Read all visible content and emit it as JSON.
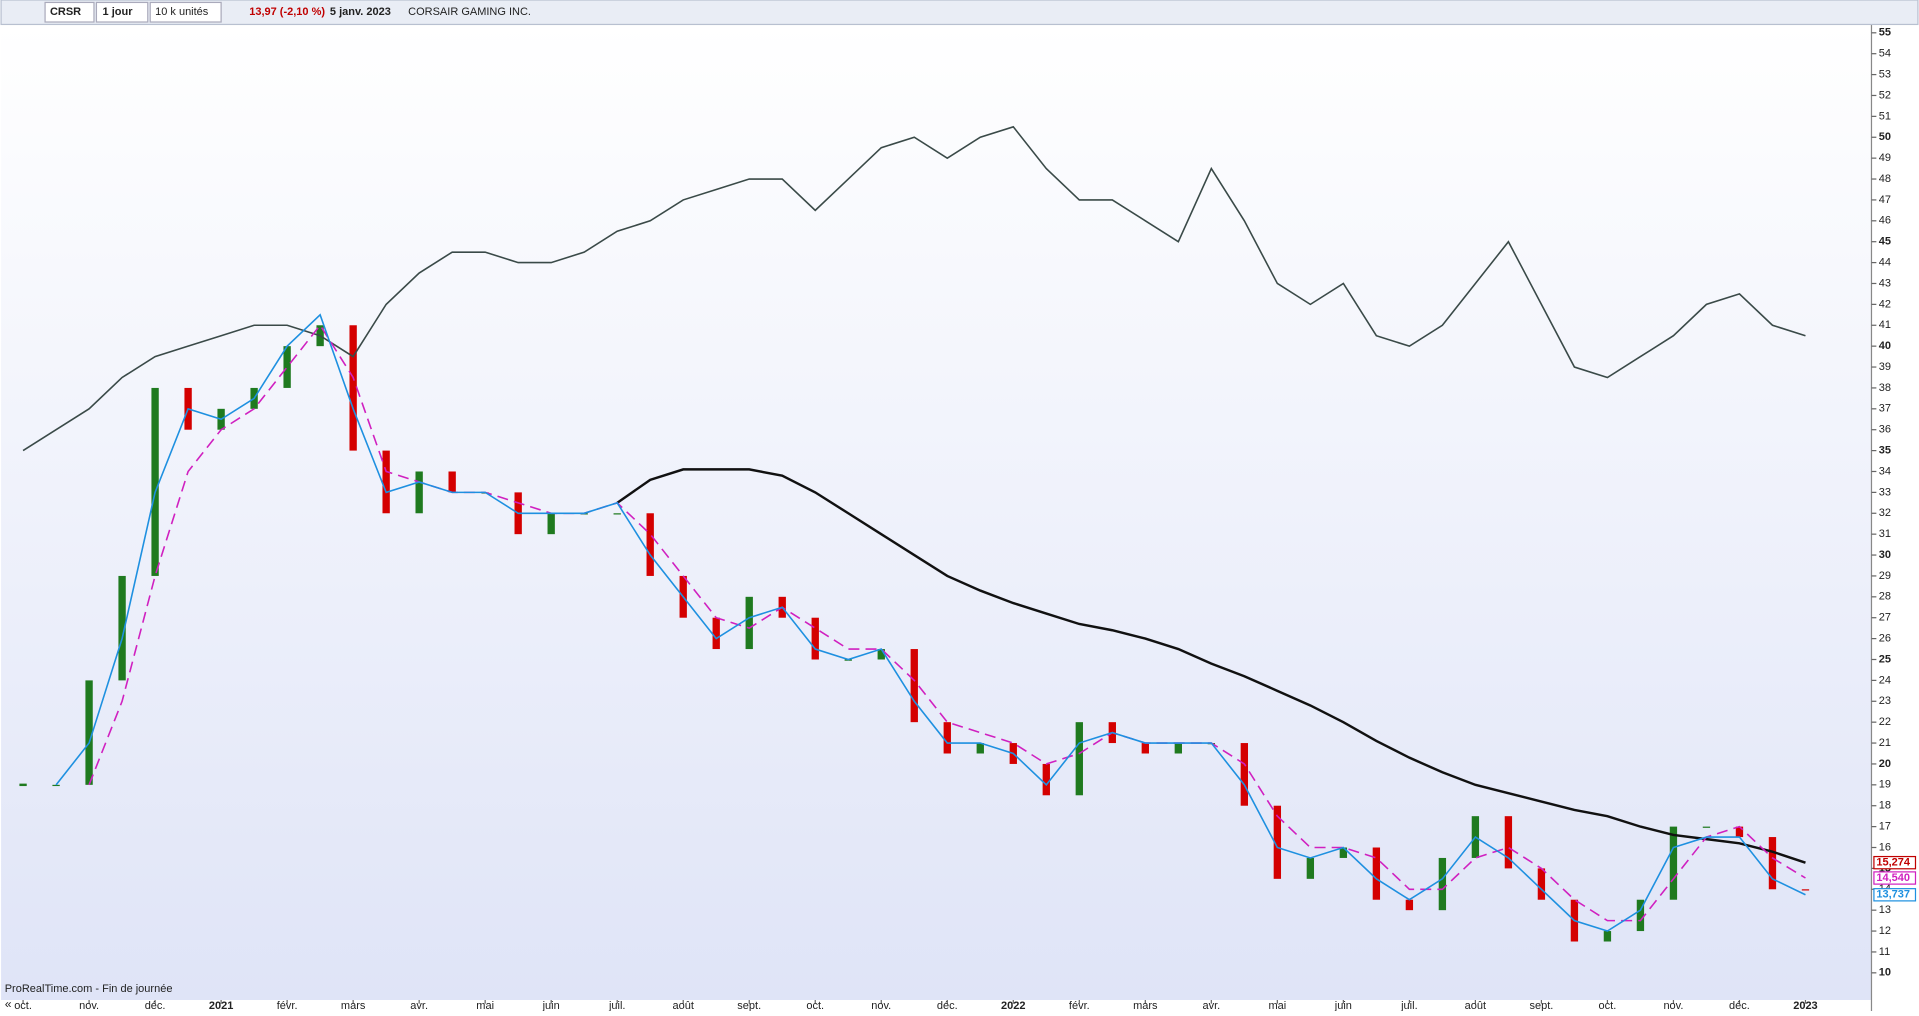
{
  "toolbar": {
    "symbol": "CRSR",
    "period": "1 jour",
    "units": "10 k unités",
    "quote": "13,97 (-2,10 %)",
    "date": "5 janv. 2023",
    "name": "CORSAIR GAMING INC."
  },
  "footer": "ProRealTime.com - Fin de journée",
  "chart_data": {
    "type": "line",
    "categories": [
      "oct.",
      null,
      "nov.",
      null,
      "déc.",
      null,
      "2021",
      null,
      "févr.",
      null,
      "mars",
      null,
      "avr.",
      null,
      "mai",
      null,
      "juin",
      null,
      "juil.",
      null,
      "août",
      null,
      "sept.",
      null,
      "oct.",
      null,
      "nov.",
      null,
      "déc.",
      null,
      "2022",
      null,
      "févr.",
      null,
      "mars",
      null,
      "avr.",
      null,
      "mai",
      null,
      "juin",
      null,
      "juil.",
      null,
      "août",
      null,
      "sept.",
      null,
      "oct.",
      null,
      "nov.",
      null,
      "déc.",
      null,
      "2023"
    ],
    "ylim": [
      8.7,
      55.4
    ],
    "yticks": [
      10,
      11,
      12,
      13,
      14,
      15,
      16,
      17,
      18,
      19,
      20,
      21,
      22,
      23,
      24,
      25,
      26,
      27,
      28,
      29,
      30,
      31,
      32,
      33,
      34,
      35,
      36,
      37,
      38,
      39,
      40,
      41,
      42,
      43,
      44,
      45,
      46,
      47,
      48,
      49,
      50,
      51,
      52,
      53,
      54,
      55
    ],
    "up_color": "#1f7a1f",
    "down_color": "#d40000",
    "series": [
      {
        "name": "CRSR",
        "role": "price",
        "values": [
          19,
          19,
          24,
          29,
          38,
          36,
          37,
          38,
          40,
          41,
          35,
          32,
          34,
          33,
          33,
          31,
          32,
          32,
          32,
          29,
          27,
          25.5,
          28,
          27,
          25,
          25,
          25.5,
          22,
          20.5,
          21,
          20,
          18.5,
          22,
          21,
          20.5,
          21,
          21,
          18,
          14.5,
          15.5,
          16,
          13.5,
          13,
          15.5,
          17.5,
          15,
          13.5,
          11.5,
          12,
          13.5,
          17,
          17,
          16.5,
          14,
          13.97
        ]
      },
      {
        "color": "#3a4a48",
        "values": [
          35,
          36,
          37,
          38.5,
          39.5,
          40,
          40.5,
          41,
          41,
          40.5,
          39.5,
          42,
          43.5,
          44.5,
          44.5,
          44,
          44,
          44.5,
          45.5,
          46,
          47,
          47.5,
          48,
          48,
          46.5,
          48,
          49.5,
          50,
          49,
          50,
          50.5,
          48.5,
          47,
          47,
          46,
          45,
          48.5,
          46,
          43,
          42,
          43,
          40.5,
          40,
          41,
          43,
          45,
          42,
          39,
          38.5,
          39.5,
          40.5,
          42,
          42.5,
          41,
          40.5
        ]
      },
      {
        "color": "#111111",
        "width": 2,
        "end_label": "15,274",
        "label_color": "#c00000",
        "values": [
          null,
          null,
          null,
          null,
          null,
          null,
          null,
          null,
          null,
          null,
          null,
          null,
          null,
          null,
          null,
          null,
          null,
          null,
          32.5,
          33.6,
          34.1,
          34.1,
          34.1,
          33.8,
          33,
          32,
          31,
          30,
          29,
          28.3,
          27.7,
          27.2,
          26.7,
          26.4,
          26,
          25.5,
          24.8,
          24.2,
          23.5,
          22.8,
          22,
          21.1,
          20.3,
          19.6,
          19,
          18.6,
          18.2,
          17.8,
          17.5,
          17,
          16.6,
          16.4,
          16.2,
          15.8,
          15.274
        ]
      },
      {
        "color": "#d020c0",
        "dash": "9 5",
        "end_label": "14,540",
        "values": [
          null,
          null,
          19,
          23,
          29,
          34,
          36,
          37,
          39,
          41,
          38.5,
          34,
          33.5,
          33,
          33,
          32.5,
          32,
          32,
          32.5,
          31,
          29,
          27,
          26.5,
          27.5,
          26.5,
          25.5,
          25.5,
          24,
          22,
          21.5,
          21,
          20,
          20.5,
          21.5,
          21,
          21,
          21,
          20,
          17.5,
          16,
          16,
          15.5,
          14,
          14,
          15.5,
          16,
          15,
          13.5,
          12.5,
          12.5,
          14.5,
          16.5,
          17,
          15.5,
          14.54
        ]
      },
      {
        "color": "#1e90e0",
        "end_label": "13,737",
        "values": [
          null,
          19,
          21,
          26,
          33,
          37,
          36.5,
          37.5,
          40,
          41.5,
          37,
          33,
          33.5,
          33,
          33,
          32,
          32,
          32,
          32.5,
          30,
          28,
          26,
          27,
          27.5,
          25.5,
          25,
          25.5,
          23,
          21,
          21,
          20.5,
          19,
          21,
          21.5,
          21,
          21,
          21,
          19,
          16,
          15.5,
          16,
          14.5,
          13.5,
          14.5,
          16.5,
          15.5,
          14,
          12.5,
          12,
          13,
          16,
          16.5,
          16.5,
          14.5,
          13.737
        ]
      }
    ]
  }
}
